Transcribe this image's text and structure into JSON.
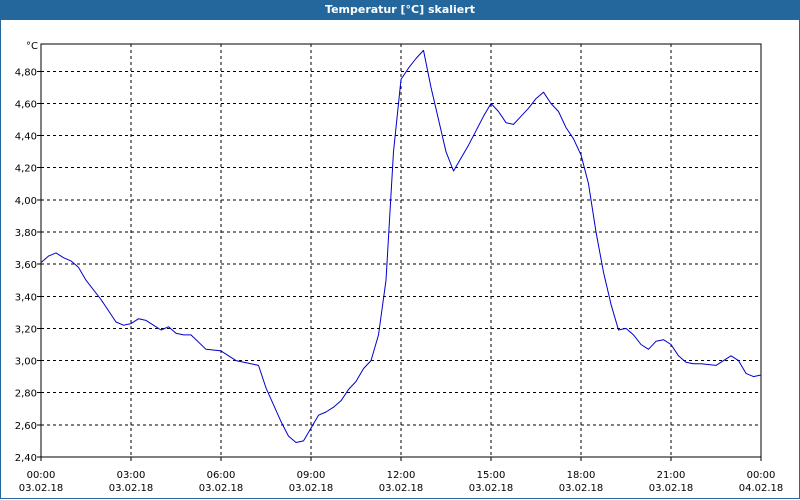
{
  "window": {
    "title": "Temperatur [°C] skaliert"
  },
  "colors": {
    "titlebar": "#23679c",
    "line": "#0000cc",
    "grid": "#000000"
  },
  "chart_data": {
    "type": "line",
    "title": "Temperatur [°C] skaliert",
    "ylabel": "°C",
    "ylim": [
      2.4,
      4.97
    ],
    "xlim_hours": [
      0,
      24
    ],
    "grid": true,
    "y_ticks": [
      "2,40",
      "2,60",
      "2,80",
      "3,00",
      "3,20",
      "3,40",
      "3,60",
      "3,80",
      "4,00",
      "4,20",
      "4,40",
      "4,60",
      "4,80"
    ],
    "x_ticks": [
      {
        "time": "00:00",
        "date": "03.02.18"
      },
      {
        "time": "03:00",
        "date": "03.02.18"
      },
      {
        "time": "06:00",
        "date": "03.02.18"
      },
      {
        "time": "09:00",
        "date": "03.02.18"
      },
      {
        "time": "12:00",
        "date": "03.02.18"
      },
      {
        "time": "15:00",
        "date": "03.02.18"
      },
      {
        "time": "18:00",
        "date": "03.02.18"
      },
      {
        "time": "21:00",
        "date": "03.02.18"
      },
      {
        "time": "00:00",
        "date": "04.02.18"
      }
    ],
    "series": [
      {
        "x": [
          "03.02.18 00:00",
          "03.02.18 00:15",
          "03.02.18 00:30",
          "03.02.18 00:45",
          "03.02.18 01:00",
          "03.02.18 01:15",
          "03.02.18 01:30",
          "03.02.18 02:00",
          "03.02.18 02:30",
          "03.02.18 02:45",
          "03.02.18 03:00",
          "03.02.18 03:15",
          "03.02.18 03:30",
          "03.02.18 03:45",
          "03.02.18 04:00",
          "03.02.18 04:15",
          "03.02.18 04:30",
          "03.02.18 04:45",
          "03.02.18 05:00",
          "03.02.18 05:30",
          "03.02.18 06:00",
          "03.02.18 06:30",
          "03.02.18 07:00",
          "03.02.18 07:15",
          "03.02.18 07:30",
          "03.02.18 08:00",
          "03.02.18 08:15",
          "03.02.18 08:30",
          "03.02.18 08:45",
          "03.02.18 09:00",
          "03.02.18 09:15",
          "03.02.18 09:30",
          "03.02.18 09:45",
          "03.02.18 10:00",
          "03.02.18 10:15",
          "03.02.18 10:30",
          "03.02.18 10:45",
          "03.02.18 11:00",
          "03.02.18 11:15",
          "03.02.18 11:30",
          "03.02.18 11:45",
          "03.02.18 12:00",
          "03.02.18 12:15",
          "03.02.18 12:30",
          "03.02.18 12:45",
          "03.02.18 13:00",
          "03.02.18 13:15",
          "03.02.18 13:30",
          "03.02.18 13:45",
          "03.02.18 14:00",
          "03.02.18 14:15",
          "03.02.18 14:30",
          "03.02.18 14:45",
          "03.02.18 15:00",
          "03.02.18 15:15",
          "03.02.18 15:30",
          "03.02.18 15:45",
          "03.02.18 16:00",
          "03.02.18 16:15",
          "03.02.18 16:30",
          "03.02.18 16:45",
          "03.02.18 17:00",
          "03.02.18 17:15",
          "03.02.18 17:30",
          "03.02.18 17:45",
          "03.02.18 18:00",
          "03.02.18 18:15",
          "03.02.18 18:30",
          "03.02.18 18:45",
          "03.02.18 19:00",
          "03.02.18 19:15",
          "03.02.18 19:30",
          "03.02.18 19:45",
          "03.02.18 20:00",
          "03.02.18 20:15",
          "03.02.18 20:30",
          "03.02.18 20:45",
          "03.02.18 21:00",
          "03.02.18 21:15",
          "03.02.18 21:30",
          "03.02.18 21:45",
          "03.02.18 22:00",
          "03.02.18 22:30",
          "03.02.18 23:00",
          "03.02.18 23:15",
          "03.02.18 23:30",
          "03.02.18 23:45",
          "04.02.18 00:00"
        ],
        "values": [
          3.61,
          3.65,
          3.67,
          3.64,
          3.62,
          3.58,
          3.5,
          3.38,
          3.24,
          3.22,
          3.23,
          3.26,
          3.25,
          3.22,
          3.19,
          3.21,
          3.17,
          3.16,
          3.16,
          3.07,
          3.06,
          3.0,
          2.98,
          2.97,
          2.83,
          2.62,
          2.53,
          2.49,
          2.5,
          2.58,
          2.66,
          2.68,
          2.71,
          2.75,
          2.82,
          2.87,
          2.95,
          3.0,
          3.16,
          3.5,
          4.3,
          4.75,
          4.82,
          4.88,
          4.93,
          4.7,
          4.5,
          4.3,
          4.18,
          4.26,
          4.34,
          4.43,
          4.52,
          4.6,
          4.55,
          4.48,
          4.47,
          4.52,
          4.57,
          4.63,
          4.67,
          4.6,
          4.55,
          4.45,
          4.38,
          4.28,
          4.1,
          3.8,
          3.55,
          3.35,
          3.19,
          3.2,
          3.16,
          3.1,
          3.07,
          3.12,
          3.13,
          3.1,
          3.03,
          2.99,
          2.98,
          2.98,
          2.97,
          3.03,
          3.0,
          2.92,
          2.9,
          2.91
        ]
      }
    ]
  }
}
